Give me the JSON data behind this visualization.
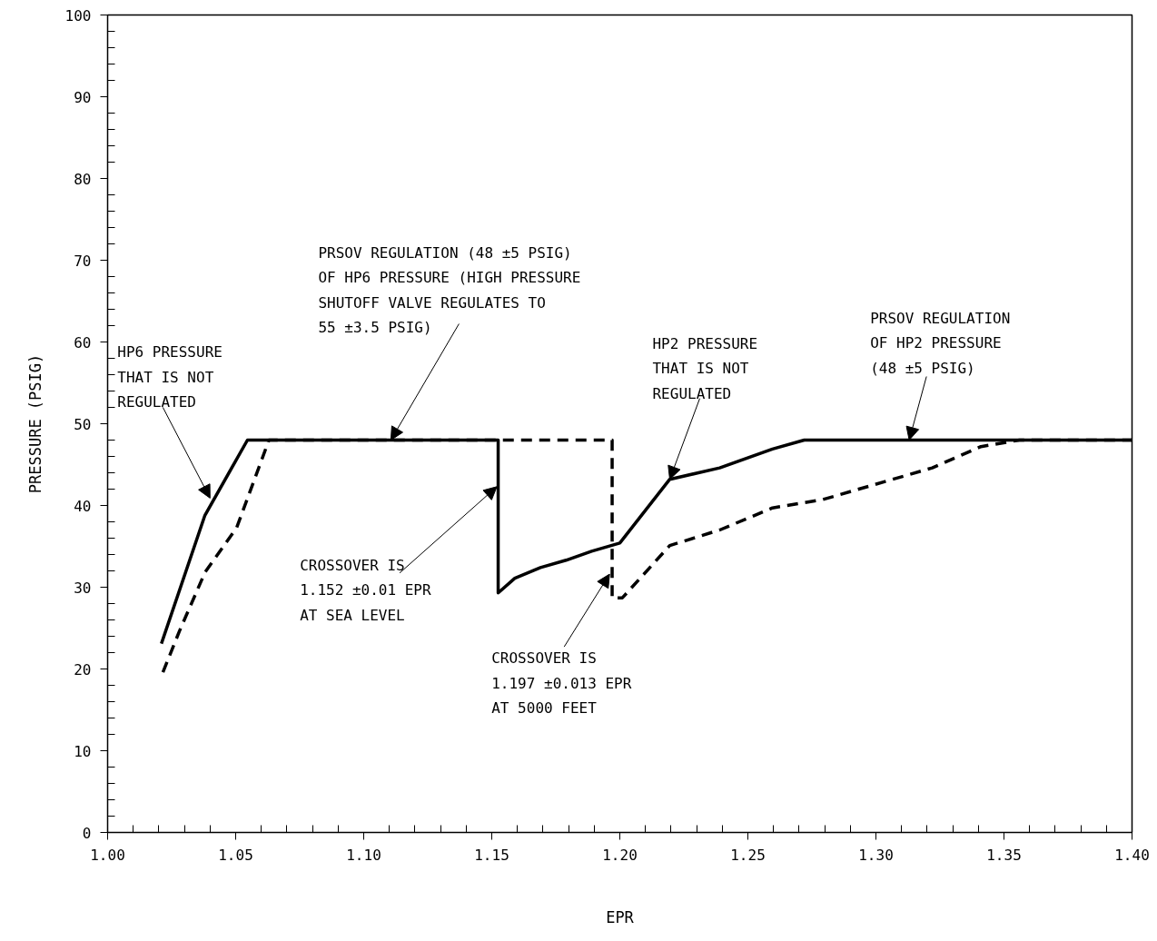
{
  "chart_data": {
    "type": "line",
    "xlabel": "EPR",
    "ylabel": "PRESSURE (PSIG)",
    "xlim": [
      1.0,
      1.4
    ],
    "ylim": [
      0,
      100
    ],
    "xticks": [
      {
        "value": 1.0,
        "label": "1.00"
      },
      {
        "value": 1.01,
        "label": null
      },
      {
        "value": 1.02,
        "label": null
      },
      {
        "value": 1.03,
        "label": null
      },
      {
        "value": 1.04,
        "label": null
      },
      {
        "value": 1.05,
        "label": "1.05"
      },
      {
        "value": 1.06,
        "label": null
      },
      {
        "value": 1.07,
        "label": null
      },
      {
        "value": 1.08,
        "label": null
      },
      {
        "value": 1.09,
        "label": null
      },
      {
        "value": 1.1,
        "label": "1.10"
      },
      {
        "value": 1.11,
        "label": null
      },
      {
        "value": 1.12,
        "label": null
      },
      {
        "value": 1.13,
        "label": null
      },
      {
        "value": 1.14,
        "label": null
      },
      {
        "value": 1.15,
        "label": "1.15"
      },
      {
        "value": 1.16,
        "label": null
      },
      {
        "value": 1.17,
        "label": null
      },
      {
        "value": 1.18,
        "label": null
      },
      {
        "value": 1.19,
        "label": null
      },
      {
        "value": 1.2,
        "label": "1.20"
      },
      {
        "value": 1.21,
        "label": null
      },
      {
        "value": 1.22,
        "label": null
      },
      {
        "value": 1.23,
        "label": null
      },
      {
        "value": 1.24,
        "label": null
      },
      {
        "value": 1.25,
        "label": "1.25"
      },
      {
        "value": 1.26,
        "label": null
      },
      {
        "value": 1.27,
        "label": null
      },
      {
        "value": 1.28,
        "label": null
      },
      {
        "value": 1.29,
        "label": null
      },
      {
        "value": 1.3,
        "label": "1.30"
      },
      {
        "value": 1.31,
        "label": null
      },
      {
        "value": 1.32,
        "label": null
      },
      {
        "value": 1.33,
        "label": null
      },
      {
        "value": 1.34,
        "label": null
      },
      {
        "value": 1.35,
        "label": "1.35"
      },
      {
        "value": 1.36,
        "label": null
      },
      {
        "value": 1.37,
        "label": null
      },
      {
        "value": 1.38,
        "label": null
      },
      {
        "value": 1.39,
        "label": null
      },
      {
        "value": 1.4,
        "label": "1.40"
      }
    ],
    "yticks": [
      0,
      {
        "value": 2,
        "label": null
      },
      {
        "value": 4,
        "label": null
      },
      {
        "value": 6,
        "label": null
      },
      {
        "value": 8,
        "label": null
      },
      10,
      {
        "value": 12,
        "label": null
      },
      {
        "value": 14,
        "label": null
      },
      {
        "value": 16,
        "label": null
      },
      {
        "value": 18,
        "label": null
      },
      20,
      {
        "value": 22,
        "label": null
      },
      {
        "value": 24,
        "label": null
      },
      {
        "value": 26,
        "label": null
      },
      {
        "value": 28,
        "label": null
      },
      30,
      {
        "value": 32,
        "label": null
      },
      {
        "value": 34,
        "label": null
      },
      {
        "value": 36,
        "label": null
      },
      {
        "value": 38,
        "label": null
      },
      40,
      {
        "value": 42,
        "label": null
      },
      {
        "value": 44,
        "label": null
      },
      {
        "value": 46,
        "label": null
      },
      {
        "value": 48,
        "label": null
      },
      50,
      {
        "value": 52,
        "label": null
      },
      {
        "value": 54,
        "label": null
      },
      {
        "value": 56,
        "label": null
      },
      {
        "value": 58,
        "label": null
      },
      60,
      {
        "value": 62,
        "label": null
      },
      {
        "value": 64,
        "label": null
      },
      {
        "value": 66,
        "label": null
      },
      {
        "value": 68,
        "label": null
      },
      70,
      {
        "value": 72,
        "label": null
      },
      {
        "value": 74,
        "label": null
      },
      {
        "value": 76,
        "label": null
      },
      {
        "value": 78,
        "label": null
      },
      80,
      {
        "value": 82,
        "label": null
      },
      {
        "value": 84,
        "label": null
      },
      {
        "value": 86,
        "label": null
      },
      {
        "value": 88,
        "label": null
      },
      90,
      {
        "value": 92,
        "label": null
      },
      {
        "value": 94,
        "label": null
      },
      {
        "value": 96,
        "label": null
      },
      {
        "value": 98,
        "label": null
      },
      100
    ],
    "grid": false,
    "marker": "none",
    "series": [
      {
        "color": "#000000",
        "line_style": "solid",
        "x": [
          1.021,
          1.038,
          1.0546,
          1.1525,
          1.1525,
          1.159,
          1.169,
          1.179,
          1.189,
          1.2,
          1.2195,
          1.239,
          1.2596,
          1.272,
          1.4
        ],
        "values": [
          23.1,
          38.8,
          48,
          48,
          29.3,
          31.1,
          32.4,
          33.3,
          34.4,
          35.4,
          43.2,
          44.6,
          46.9,
          48,
          48
        ]
      },
      {
        "color": "#000000",
        "line_style": "dashed",
        "x": [
          1.0216,
          1.028,
          1.038,
          1.0504,
          1.063,
          1.197,
          1.197,
          1.201,
          1.2195,
          1.239,
          1.2596,
          1.279,
          1.322,
          1.341,
          1.356,
          1.4
        ],
        "values": [
          19.6,
          24.6,
          31.8,
          37.3,
          48,
          48,
          28.7,
          28.7,
          35.1,
          37,
          39.7,
          40.7,
          44.6,
          47.2,
          48,
          48
        ]
      }
    ],
    "annotations": [
      {
        "text": "PRSOV REGULATION (48 ±5 PSIG)\nOF HP6 PRESSURE (HIGH PRESSURE\nSHUTOFF VALVE REGULATES TO\n55 ±3.5 PSIG)",
        "x": 1.1106,
        "y": 48
      },
      {
        "text": "HP6 PRESSURE\nTHAT IS NOT\nREGULATED",
        "x": 1.04,
        "y": 40.9
      },
      {
        "text": "CROSSOVER IS\n1.152 ±0.01 EPR\nAT SEA LEVEL",
        "x": 1.152,
        "y": 42.3
      },
      {
        "text": "CROSSOVER IS\n1.197 ±0.013 EPR\nAT 5000 FEET",
        "x": 1.196,
        "y": 31.6
      },
      {
        "text": "HP2 PRESSURE\nTHAT IS NOT\nREGULATED",
        "x": 1.2195,
        "y": 43.2
      },
      {
        "text": "PRSOV REGULATION\nOF HP2 PRESSURE\n(48 ±5 PSIG)",
        "x": 1.313,
        "y": 48
      }
    ]
  }
}
